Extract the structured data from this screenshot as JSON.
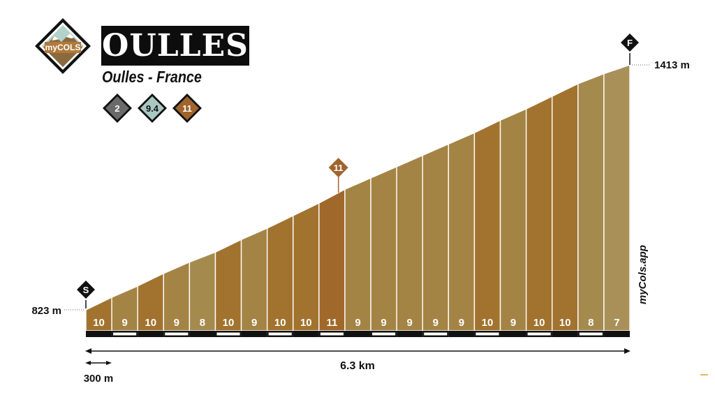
{
  "header": {
    "logo_text": "myCOLS",
    "title": "OULLES",
    "subtitle": "Oulles - France",
    "badges": [
      {
        "value": "2",
        "color": "#6a6a6a"
      },
      {
        "value": "9.4",
        "color": "#a9c8c2"
      },
      {
        "value": "11",
        "color": "#a0642c"
      }
    ]
  },
  "brand_vertical": "myCols.app",
  "colors": {
    "grade_7": "#a89058",
    "grade_8": "#a58a4e",
    "grade_9": "#a48444",
    "grade_10": "#a2732f",
    "grade_11": "#a0682a",
    "marker": "#111111",
    "badge_marker": "#a0642c"
  },
  "chart_data": {
    "type": "area",
    "segment_length_km": 0.3,
    "total_distance_label": "6.3 km",
    "segment_scale_label": "300 m",
    "start_elevation_m": 823,
    "finish_elevation_m": 1413,
    "start_label": "823 m",
    "finish_label": "1413 m",
    "start_marker": "S",
    "finish_marker": "F",
    "max_gradient_marker": {
      "label": "11",
      "segment_index": 9
    },
    "gradients_pct": [
      10,
      9,
      10,
      9,
      8,
      10,
      9,
      10,
      10,
      11,
      9,
      9,
      9,
      9,
      9,
      10,
      9,
      10,
      10,
      8,
      7
    ],
    "gradient_labels": [
      "10",
      "9",
      "10",
      "9",
      "8",
      "10",
      "9",
      "10",
      "10",
      "11",
      "9",
      "9",
      "9",
      "9",
      "9",
      "10",
      "9",
      "10",
      "10",
      "8",
      "7"
    ]
  }
}
